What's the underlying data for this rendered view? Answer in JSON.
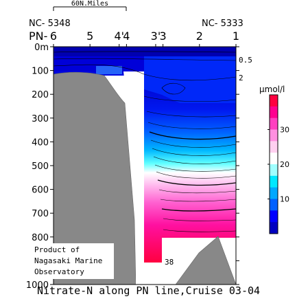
{
  "chart_data": {
    "type": "heatmap",
    "title": "Nitrate-N along PN line,Cruise 03-04",
    "scale_bar_label": "60N.Miles",
    "end_station_labels": {
      "left": "NC- 5348",
      "right": "NC- 5333"
    },
    "line_prefix": "PN-",
    "stations": [
      "6",
      "5",
      "4'",
      "4",
      "3'",
      "3",
      "2",
      "1"
    ],
    "station_x": [
      6,
      5,
      4.2,
      4,
      3.2,
      3,
      2,
      1
    ],
    "depth_axis": {
      "range": [
        0,
        1000
      ],
      "ticks": [
        "0m",
        "100",
        "200",
        "300",
        "400",
        "500",
        "600",
        "700",
        "800",
        "900",
        "1000"
      ]
    },
    "colorbar": {
      "unit": "μmol/l",
      "range": [
        0,
        40
      ],
      "ticks": [
        "30",
        "20",
        "10"
      ],
      "colors": [
        "#0000c0",
        "#0000ff",
        "#0060ff",
        "#00a8ff",
        "#00e8ff",
        "#a0ffff",
        "#ffffff",
        "#ffd0f0",
        "#ff90e0",
        "#ff40c0",
        "#ff0090",
        "#ff0040"
      ]
    },
    "contour_labels": [
      {
        "text": "0.5",
        "depth": 55
      },
      {
        "text": "2",
        "depth": 130
      },
      {
        "text": "38",
        "depth": 905
      }
    ],
    "credit": [
      "Product of",
      "Nagasaki Marine",
      "Observatory"
    ]
  }
}
